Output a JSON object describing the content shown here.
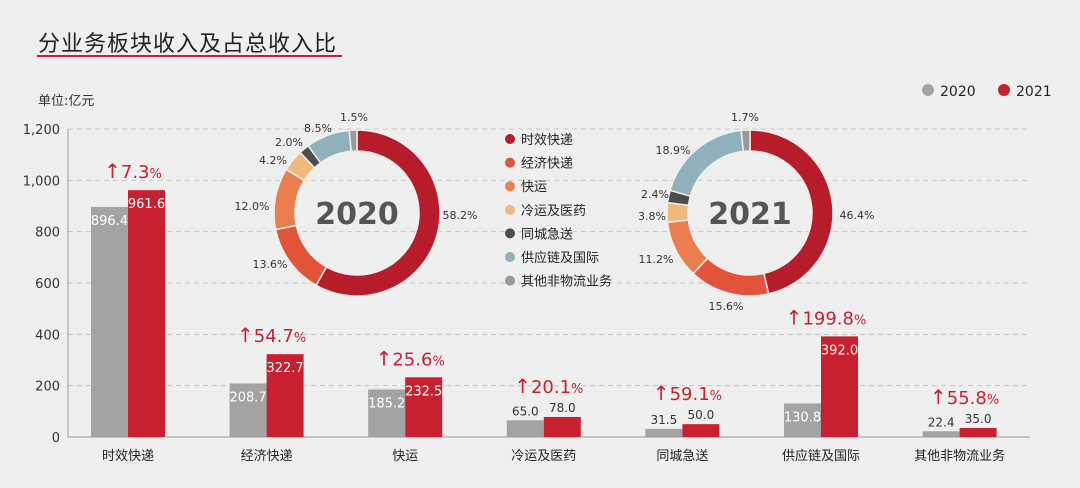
{
  "chart_data": [
    {
      "type": "bar",
      "title": "分业务板块收入及占总收入比",
      "unit_label": "单位:亿元",
      "categories": [
        "时效快递",
        "经济快递",
        "快运",
        "冷运及医药",
        "同城急送",
        "供应链及国际",
        "其他非物流业务"
      ],
      "series": [
        {
          "name": "2020",
          "color": "#a3a3a3",
          "values": [
            896.4,
            208.7,
            185.2,
            65.0,
            31.5,
            130.8,
            22.4
          ],
          "labels": [
            "896.4",
            "208.7",
            "185.2",
            "65.0",
            "31.5",
            "130.8",
            "22.4"
          ]
        },
        {
          "name": "2021",
          "color": "#c8202f",
          "values": [
            961.6,
            322.7,
            232.5,
            78.0,
            50.0,
            392.0,
            35.0
          ],
          "labels": [
            "961.6",
            "322.7",
            "232.5",
            "78.0",
            "50.0",
            "392.0",
            "35.0"
          ]
        }
      ],
      "growth": [
        {
          "arrow": "↑",
          "value": "7.3",
          "unit": "%"
        },
        {
          "arrow": "↑",
          "value": "54.7",
          "unit": "%"
        },
        {
          "arrow": "↑",
          "value": "25.6",
          "unit": "%"
        },
        {
          "arrow": "↑",
          "value": "20.1",
          "unit": "%"
        },
        {
          "arrow": "↑",
          "value": "59.1",
          "unit": "%"
        },
        {
          "arrow": "↑",
          "value": "199.8",
          "unit": "%"
        },
        {
          "arrow": "↑",
          "value": "55.8",
          "unit": "%"
        }
      ],
      "yticks": [
        "0",
        "200",
        "400",
        "600",
        "800",
        "1,000",
        "1,200"
      ],
      "ylim": [
        0,
        1200
      ],
      "grid": true,
      "legend_position": "top-right"
    },
    {
      "type": "pie",
      "center_label": "2020",
      "categories": [
        "时效快递",
        "经济快递",
        "快运",
        "冷运及医药",
        "同城急送",
        "供应链及国际",
        "其他非物流业务"
      ],
      "values": [
        58.2,
        13.6,
        12.0,
        4.2,
        2.0,
        8.5,
        1.5
      ],
      "labels": [
        "58.2%",
        "13.6%",
        "12.0%",
        "4.2%",
        "2.0%",
        "8.5%",
        "1.5%"
      ]
    },
    {
      "type": "pie",
      "center_label": "2021",
      "categories": [
        "时效快递",
        "经济快递",
        "快运",
        "冷运及医药",
        "同城急送",
        "供应链及国际",
        "其他非物流业务"
      ],
      "values": [
        46.4,
        15.6,
        11.2,
        3.8,
        2.4,
        18.9,
        1.7
      ],
      "labels": [
        "46.4%",
        "15.6%",
        "11.2%",
        "3.8%",
        "2.4%",
        "18.9%",
        "1.7%"
      ]
    }
  ],
  "segment_colors": [
    "#b71c2a",
    "#e2533a",
    "#ec7d4e",
    "#f0b97a",
    "#4d4d4d",
    "#8fb1bb",
    "#9a9a9a"
  ],
  "donut_legend": [
    "时效快递",
    "经济快递",
    "快运",
    "冷运及医药",
    "同城急送",
    "供应链及国际",
    "其他非物流业务"
  ]
}
